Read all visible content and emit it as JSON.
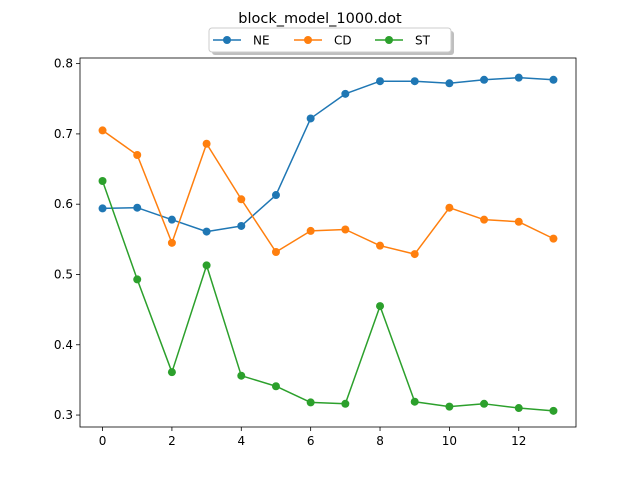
{
  "chart_data": {
    "type": "line",
    "title": "block_model_1000.dot",
    "xlabel": "",
    "ylabel": "",
    "x": [
      0,
      1,
      2,
      3,
      4,
      5,
      6,
      7,
      8,
      9,
      10,
      11,
      12,
      13
    ],
    "xlim": [
      -0.65,
      13.65
    ],
    "ylim": [
      0.283,
      0.808
    ],
    "x_ticks": [
      0,
      2,
      4,
      6,
      8,
      10,
      12
    ],
    "y_ticks": [
      0.3,
      0.4,
      0.5,
      0.6,
      0.7,
      0.8
    ],
    "y_tick_labels": [
      "0.3",
      "0.4",
      "0.5",
      "0.6",
      "0.7",
      "0.8"
    ],
    "grid": false,
    "legend_placement": "top-center",
    "series": [
      {
        "name": "NE",
        "color": "#1f77b4",
        "values": [
          0.594,
          0.595,
          0.578,
          0.561,
          0.569,
          0.613,
          0.722,
          0.757,
          0.775,
          0.775,
          0.772,
          0.777,
          0.78,
          0.777
        ]
      },
      {
        "name": "CD",
        "color": "#ff7f0e",
        "values": [
          0.705,
          0.67,
          0.545,
          0.686,
          0.607,
          0.532,
          0.562,
          0.564,
          0.541,
          0.529,
          0.595,
          0.578,
          0.575,
          0.551
        ]
      },
      {
        "name": "ST",
        "color": "#2ca02c",
        "values": [
          0.633,
          0.493,
          0.361,
          0.513,
          0.356,
          0.341,
          0.318,
          0.316,
          0.455,
          0.319,
          0.312,
          0.316,
          0.31,
          0.306
        ]
      }
    ]
  }
}
